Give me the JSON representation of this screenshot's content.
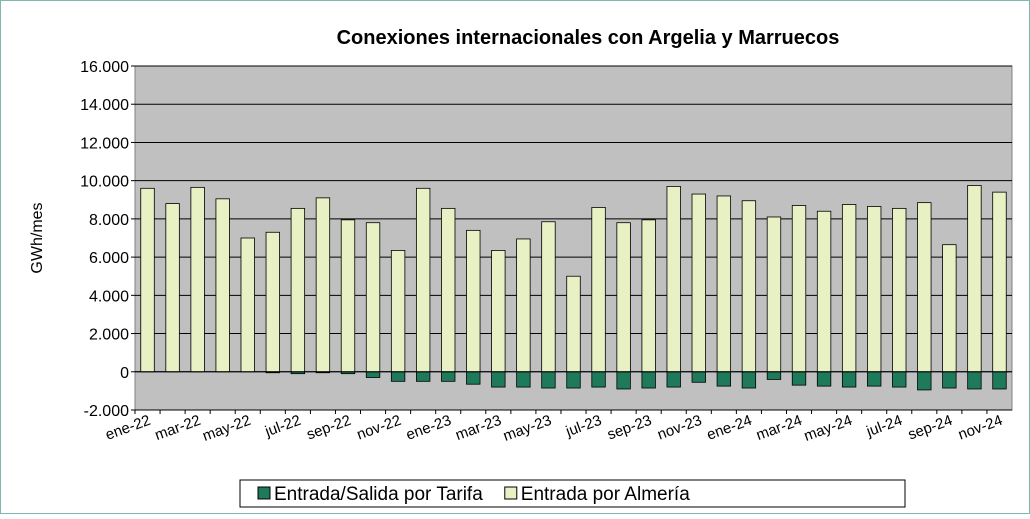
{
  "chart_data": {
    "type": "bar",
    "stacked": true,
    "title": "Conexiones internacionales con Argelia y Marruecos",
    "y_label": "GWh/mes",
    "categories": [
      "ene-22",
      null,
      "mar-22",
      null,
      "may-22",
      null,
      "jul-22",
      null,
      "sep-22",
      null,
      "nov-22",
      null,
      "ene-23",
      null,
      "mar-23",
      null,
      "may-23",
      null,
      "jul-23",
      null,
      "sep-23",
      null,
      "nov-23",
      null,
      "ene-24",
      null,
      "mar-24",
      null,
      "may-24",
      null,
      "jul-24",
      null,
      "sep-24",
      null,
      "nov-24"
    ],
    "series": [
      {
        "name": "Entrada/Salida por Tarifa",
        "color": "#1f7a5c",
        "values": [
          0,
          0,
          0,
          0,
          0,
          -50,
          -100,
          -50,
          -100,
          -300,
          -500,
          -500,
          -500,
          -650,
          -800,
          -800,
          -850,
          -850,
          -800,
          -900,
          -850,
          -800,
          -550,
          -750,
          -850,
          -400,
          -700,
          -750,
          -800,
          -750,
          -800,
          -950,
          -850,
          -900,
          -900
        ]
      },
      {
        "name": "Entrada por Almería",
        "color": "#e8f1c4",
        "values": [
          9600,
          8800,
          9650,
          9050,
          7000,
          7300,
          8550,
          9100,
          7950,
          7800,
          6350,
          9600,
          8550,
          7400,
          6350,
          6950,
          7850,
          5000,
          8600,
          7800,
          7950,
          9700,
          9300,
          9200,
          8950,
          8100,
          8700,
          8400,
          8750,
          8650,
          8550,
          8850,
          6650,
          9750,
          9400
        ]
      }
    ],
    "ylim": [
      -2000,
      16000
    ],
    "yticks": [
      {
        "value": -2000,
        "label": "-2.000"
      },
      0,
      {
        "value": 2000,
        "label": "2.000"
      },
      {
        "value": 4000,
        "label": "4.000"
      },
      {
        "value": 6000,
        "label": "6.000"
      },
      {
        "value": 8000,
        "label": "8.000"
      },
      {
        "value": 10000,
        "label": "10.000"
      },
      {
        "value": 12000,
        "label": "12.000"
      },
      {
        "value": 14000,
        "label": "14.000"
      },
      {
        "value": 16000,
        "label": "16.000"
      }
    ],
    "grid": true,
    "legend": "bottom"
  }
}
